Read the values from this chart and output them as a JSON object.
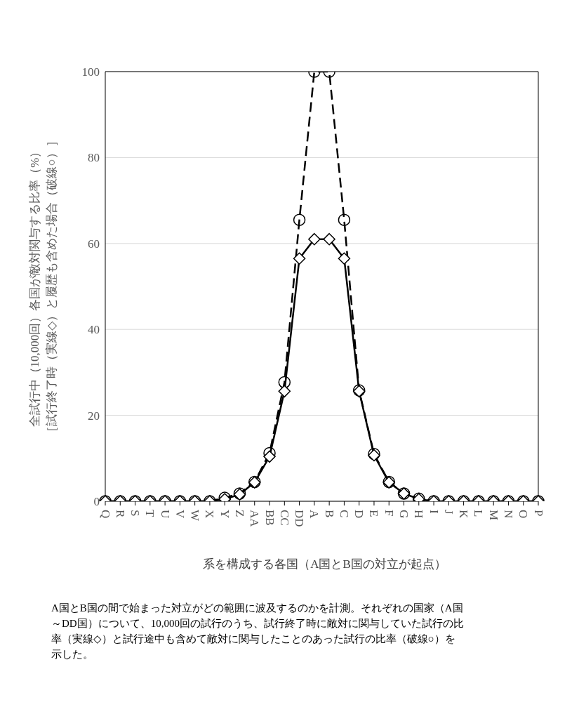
{
  "chart_data": {
    "type": "line",
    "xlabel": "系を構成する各国（A国とB国の対立が起点）",
    "ylabel": "全試行中（10,000回）各国が敵対関与する比率（%）［試行終了時（実線◇）と履歴も含めた場合（破線○）］",
    "categories": [
      "Q",
      "R",
      "S",
      "T",
      "U",
      "V",
      "W",
      "X",
      "Y",
      "Z",
      "AA",
      "BB",
      "CC",
      "DD",
      "A",
      "B",
      "C",
      "D",
      "E",
      "F",
      "G",
      "H",
      "I",
      "J",
      "K",
      "L",
      "M",
      "N",
      "O",
      "P"
    ],
    "series": [
      {
        "color": "#000000",
        "marker": "circle",
        "line_style": "dashed",
        "values": [
          0,
          0,
          0,
          0,
          0,
          0,
          0,
          0,
          0.8,
          1.8,
          4.5,
          11.2,
          27.7,
          65.5,
          100,
          100,
          65.5,
          25.8,
          11,
          4.5,
          1.8,
          0.6,
          0,
          0,
          0,
          0,
          0,
          0,
          0,
          0
        ]
      },
      {
        "color": "#000000",
        "marker": "diamond",
        "line_style": "solid",
        "values": [
          0,
          0,
          0,
          0,
          0,
          0,
          0,
          0,
          0.5,
          1.6,
          4.4,
          10.4,
          25.6,
          56.5,
          61,
          61,
          56.5,
          25.6,
          10.7,
          4.4,
          1.8,
          0.5,
          0,
          0,
          0,
          0,
          0,
          0,
          0,
          0
        ]
      }
    ],
    "ylim": [
      0,
      100
    ],
    "yticks": [
      0,
      20,
      40,
      60,
      80,
      100
    ],
    "grid": "y",
    "legend": false,
    "annotations": [
      "A国とB国の間で始まった対立がどの範囲に波及するのかを計測。それぞれの国家（A国～DD国）について、10,000回の試行のうち、試行終了時に敵対に関与していた試行の比率（実線◇）と試行途中も含めて敵対に関与したことのあった試行の比率（破線○）を示した。"
    ]
  }
}
